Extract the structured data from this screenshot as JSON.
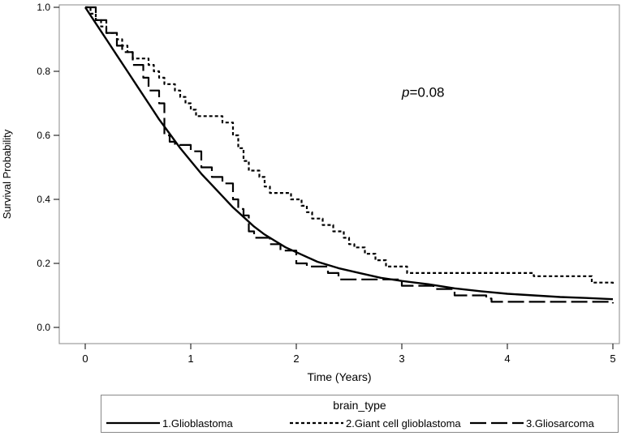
{
  "chart_data": {
    "type": "line",
    "title": "",
    "xlabel": "Time (Years)",
    "ylabel": "Survival Probability",
    "xlim": [
      0,
      5
    ],
    "ylim": [
      0,
      1.0
    ],
    "x_ticks": [
      "0",
      "1",
      "2",
      "3",
      "4",
      "5"
    ],
    "y_ticks": [
      "0.0",
      "0.2",
      "0.4",
      "0.6",
      "0.8",
      "1.0"
    ],
    "annotation": {
      "italic": "p",
      "text": "=0.08",
      "x": 3.0,
      "y": 0.72
    },
    "legend_title": "brain_type",
    "legend_position": "bottom",
    "series": [
      {
        "name": "1.Glioblastoma",
        "style": "solid",
        "points": [
          [
            0,
            1.0
          ],
          [
            0.1,
            0.95
          ],
          [
            0.2,
            0.9
          ],
          [
            0.3,
            0.85
          ],
          [
            0.4,
            0.8
          ],
          [
            0.5,
            0.75
          ],
          [
            0.6,
            0.7
          ],
          [
            0.7,
            0.65
          ],
          [
            0.8,
            0.605
          ],
          [
            0.9,
            0.56
          ],
          [
            1.0,
            0.52
          ],
          [
            1.1,
            0.48
          ],
          [
            1.2,
            0.445
          ],
          [
            1.3,
            0.41
          ],
          [
            1.4,
            0.375
          ],
          [
            1.5,
            0.345
          ],
          [
            1.6,
            0.315
          ],
          [
            1.7,
            0.29
          ],
          [
            1.8,
            0.27
          ],
          [
            1.9,
            0.25
          ],
          [
            2.0,
            0.235
          ],
          [
            2.2,
            0.205
          ],
          [
            2.4,
            0.185
          ],
          [
            2.6,
            0.17
          ],
          [
            2.8,
            0.155
          ],
          [
            3.0,
            0.145
          ],
          [
            3.25,
            0.135
          ],
          [
            3.5,
            0.122
          ],
          [
            3.75,
            0.113
          ],
          [
            4.0,
            0.105
          ],
          [
            4.25,
            0.1
          ],
          [
            4.5,
            0.095
          ],
          [
            4.75,
            0.092
          ],
          [
            5.0,
            0.088
          ]
        ]
      },
      {
        "name": "2.Giant cell glioblastoma",
        "style": "dotted",
        "points": [
          [
            0,
            1.0
          ],
          [
            0.05,
            0.98
          ],
          [
            0.1,
            0.96
          ],
          [
            0.15,
            0.94
          ],
          [
            0.2,
            0.92
          ],
          [
            0.3,
            0.9
          ],
          [
            0.35,
            0.88
          ],
          [
            0.4,
            0.86
          ],
          [
            0.45,
            0.84
          ],
          [
            0.6,
            0.82
          ],
          [
            0.65,
            0.8
          ],
          [
            0.7,
            0.78
          ],
          [
            0.75,
            0.76
          ],
          [
            0.85,
            0.74
          ],
          [
            0.9,
            0.72
          ],
          [
            0.95,
            0.7
          ],
          [
            1.0,
            0.68
          ],
          [
            1.05,
            0.66
          ],
          [
            1.3,
            0.64
          ],
          [
            1.4,
            0.6
          ],
          [
            1.45,
            0.56
          ],
          [
            1.5,
            0.52
          ],
          [
            1.55,
            0.49
          ],
          [
            1.65,
            0.47
          ],
          [
            1.7,
            0.44
          ],
          [
            1.75,
            0.42
          ],
          [
            1.95,
            0.4
          ],
          [
            2.05,
            0.38
          ],
          [
            2.1,
            0.36
          ],
          [
            2.15,
            0.34
          ],
          [
            2.25,
            0.32
          ],
          [
            2.35,
            0.3
          ],
          [
            2.45,
            0.28
          ],
          [
            2.5,
            0.26
          ],
          [
            2.55,
            0.25
          ],
          [
            2.65,
            0.23
          ],
          [
            2.75,
            0.21
          ],
          [
            2.85,
            0.19
          ],
          [
            3.05,
            0.17
          ],
          [
            3.65,
            0.17
          ],
          [
            4.25,
            0.16
          ],
          [
            4.75,
            0.16
          ],
          [
            4.8,
            0.14
          ],
          [
            5.0,
            0.13
          ]
        ]
      },
      {
        "name": "3.Gliosarcoma",
        "style": "dashed",
        "points": [
          [
            0,
            1.0
          ],
          [
            0.1,
            0.96
          ],
          [
            0.2,
            0.92
          ],
          [
            0.3,
            0.88
          ],
          [
            0.35,
            0.86
          ],
          [
            0.45,
            0.82
          ],
          [
            0.55,
            0.78
          ],
          [
            0.6,
            0.74
          ],
          [
            0.7,
            0.7
          ],
          [
            0.75,
            0.6
          ],
          [
            0.8,
            0.58
          ],
          [
            0.85,
            0.57
          ],
          [
            1.0,
            0.55
          ],
          [
            1.1,
            0.5
          ],
          [
            1.2,
            0.47
          ],
          [
            1.3,
            0.45
          ],
          [
            1.4,
            0.4
          ],
          [
            1.45,
            0.37
          ],
          [
            1.5,
            0.35
          ],
          [
            1.55,
            0.3
          ],
          [
            1.6,
            0.28
          ],
          [
            1.75,
            0.26
          ],
          [
            1.85,
            0.24
          ],
          [
            2.0,
            0.2
          ],
          [
            2.1,
            0.19
          ],
          [
            2.3,
            0.17
          ],
          [
            2.4,
            0.15
          ],
          [
            2.9,
            0.15
          ],
          [
            3.0,
            0.13
          ],
          [
            3.3,
            0.12
          ],
          [
            3.5,
            0.1
          ],
          [
            3.8,
            0.09
          ],
          [
            3.85,
            0.08
          ],
          [
            4.7,
            0.08
          ],
          [
            5.0,
            0.075
          ]
        ]
      }
    ]
  }
}
